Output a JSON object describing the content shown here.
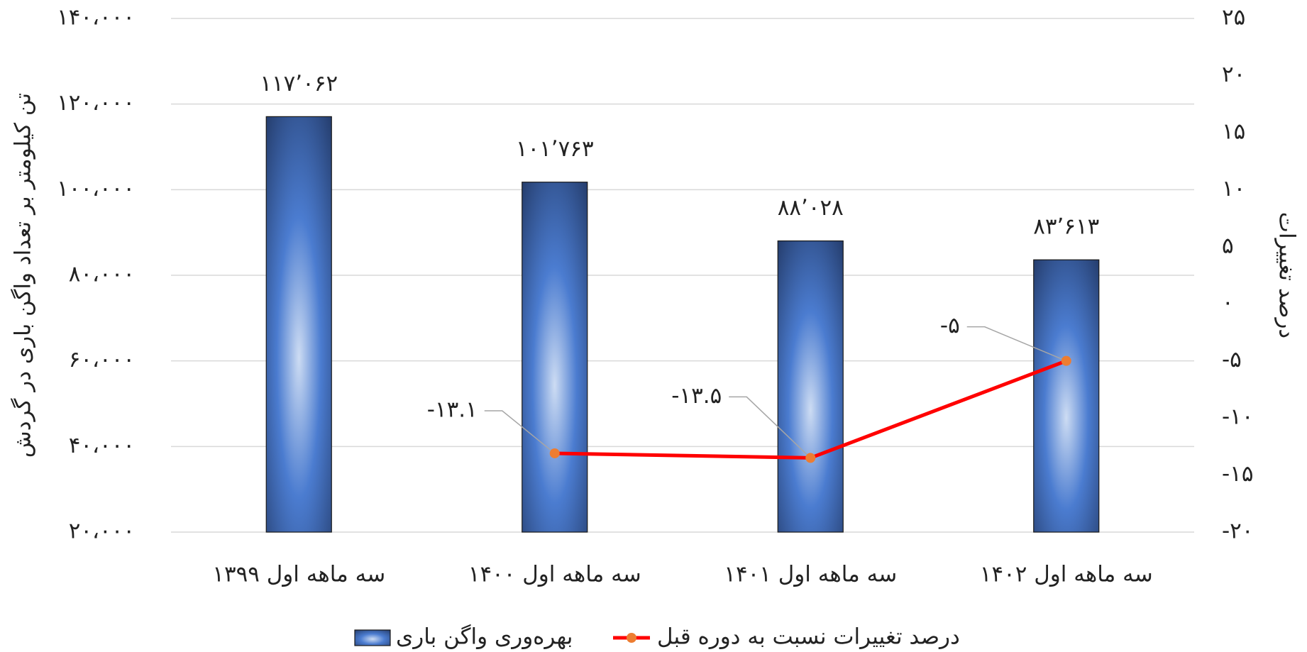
{
  "chart_data": {
    "type": "bar_line",
    "categories": [
      "سه ماهه اول ۱۳۹۹",
      "سه ماهه اول ۱۴۰۰",
      "سه ماهه اول ۱۴۰۱",
      "سه ماهه اول ۱۴۰۲"
    ],
    "ylabel": "تن کیلومتر بر تعداد واگن باری در گردش",
    "y2label": "درصد تغییرات",
    "series": [
      {
        "name": "بهره‌وری واگن باری",
        "type": "bar",
        "color": "#3f6cb8",
        "values": [
          117062,
          101763,
          88028,
          83613
        ],
        "value_labels": [
          "۱۱۷٬۰۶۲",
          "۱۰۱٬۷۶۳",
          "۸۸٬۰۲۸",
          "۸۳٬۶۱۳"
        ]
      },
      {
        "name": "درصد تغییرات نسبت به دوره قبل",
        "type": "line",
        "axis": "y2",
        "color": "#ff0000",
        "marker_color": "#ed7d31",
        "values": [
          null,
          -13.1,
          -13.5,
          -5
        ],
        "value_labels": [
          null,
          "-۱۳.۱",
          "-۱۳.۵",
          "-۵"
        ]
      }
    ],
    "ylim": [
      20000,
      140000
    ],
    "yticks": [
      {
        "value": 20000,
        "label": "۲۰،۰۰۰"
      },
      {
        "value": 40000,
        "label": "۴۰،۰۰۰"
      },
      {
        "value": 60000,
        "label": "۶۰،۰۰۰"
      },
      {
        "value": 80000,
        "label": "۸۰،۰۰۰"
      },
      {
        "value": 100000,
        "label": "۱۰۰،۰۰۰"
      },
      {
        "value": 120000,
        "label": "۱۲۰،۰۰۰"
      },
      {
        "value": 140000,
        "label": "۱۴۰،۰۰۰"
      }
    ],
    "y2lim": [
      -20,
      25
    ],
    "y2ticks": [
      {
        "value": -20,
        "label": "-۲۰"
      },
      {
        "value": -15,
        "label": "-۱۵"
      },
      {
        "value": -10,
        "label": "-۱۰"
      },
      {
        "value": -5,
        "label": "-۵"
      },
      {
        "value": 0,
        "label": "۰"
      },
      {
        "value": 5,
        "label": "۵"
      },
      {
        "value": 10,
        "label": "۱۰"
      },
      {
        "value": 15,
        "label": "۱۵"
      },
      {
        "value": 20,
        "label": "۲۰"
      },
      {
        "value": 25,
        "label": "۲۵"
      }
    ],
    "grid": true,
    "legend": "bottom"
  }
}
